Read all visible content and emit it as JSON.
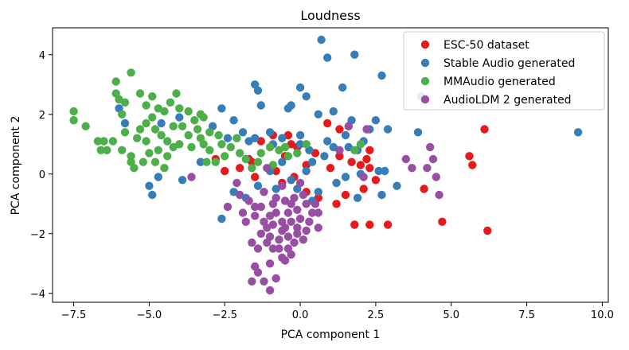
{
  "chart_data": {
    "type": "scatter",
    "title": "Loudness",
    "xlabel": "PCA component 1",
    "ylabel": "PCA component 2",
    "xlim": [
      -8.2,
      10.2
    ],
    "ylim": [
      -4.3,
      4.9
    ],
    "xticks": [
      -7.5,
      -5.0,
      -2.5,
      0.0,
      2.5,
      5.0,
      7.5,
      10.0
    ],
    "xtick_labels": [
      "−7.5",
      "−5.0",
      "−2.5",
      "0.0",
      "2.5",
      "5.0",
      "7.5",
      "10.0"
    ],
    "yticks": [
      -4,
      -2,
      0,
      2,
      4
    ],
    "ytick_labels": [
      "−4",
      "−2",
      "0",
      "2",
      "4"
    ],
    "grid": false,
    "legend_position": "top-right",
    "series": [
      {
        "name": "ESC-50 dataset",
        "color": "#e41a1c",
        "points": [
          [
            -1.3,
            1.1
          ],
          [
            -0.9,
            1.3
          ],
          [
            -0.4,
            1.3
          ],
          [
            -0.3,
            1.0
          ],
          [
            -0.1,
            0.9
          ],
          [
            0.9,
            1.7
          ],
          [
            1.3,
            1.5
          ],
          [
            1.6,
            1.6
          ],
          [
            2.2,
            0.5
          ],
          [
            2.3,
            0.8
          ],
          [
            2.0,
            0.3
          ],
          [
            1.3,
            0.6
          ],
          [
            0.5,
            0.7
          ],
          [
            -1.7,
            0.5
          ],
          [
            -2.0,
            0.2
          ],
          [
            -2.5,
            0.1
          ],
          [
            -1.5,
            -0.1
          ],
          [
            -0.8,
            0.1
          ],
          [
            -0.6,
            -0.3
          ],
          [
            -0.2,
            -0.1
          ],
          [
            0.2,
            0.3
          ],
          [
            1.0,
            0.2
          ],
          [
            1.7,
            0.4
          ],
          [
            2.3,
            0.2
          ],
          [
            2.5,
            -0.2
          ],
          [
            2.1,
            -0.5
          ],
          [
            1.5,
            -0.7
          ],
          [
            0.6,
            -0.8
          ],
          [
            1.2,
            -1.0
          ],
          [
            1.8,
            -1.7
          ],
          [
            2.3,
            -1.7
          ],
          [
            2.9,
            -1.7
          ],
          [
            4.1,
            -0.5
          ],
          [
            4.7,
            -1.6
          ],
          [
            5.6,
            0.6
          ],
          [
            5.7,
            0.3
          ],
          [
            6.1,
            1.5
          ],
          [
            6.2,
            -1.9
          ],
          [
            -2.8,
            0.5
          ],
          [
            -1.6,
            0.4
          ],
          [
            -0.5,
            0.6
          ],
          [
            0.2,
            -0.6
          ]
        ]
      },
      {
        "name": "Stable Audio generated",
        "color": "#377eb8",
        "points": [
          [
            0.7,
            4.5
          ],
          [
            0.9,
            3.9
          ],
          [
            1.8,
            4.0
          ],
          [
            2.7,
            3.3
          ],
          [
            1.4,
            2.9
          ],
          [
            -1.4,
            2.8
          ],
          [
            -1.5,
            3.0
          ],
          [
            -1.3,
            2.3
          ],
          [
            -0.4,
            2.2
          ],
          [
            0.0,
            2.9
          ],
          [
            0.2,
            2.6
          ],
          [
            -0.3,
            2.3
          ],
          [
            0.6,
            2.0
          ],
          [
            1.1,
            2.1
          ],
          [
            1.7,
            1.8
          ],
          [
            2.3,
            1.5
          ],
          [
            2.5,
            1.8
          ],
          [
            2.9,
            1.5
          ],
          [
            3.9,
            1.4
          ],
          [
            4.0,
            2.6
          ],
          [
            9.2,
            1.4
          ],
          [
            -2.6,
            2.2
          ],
          [
            -2.2,
            1.8
          ],
          [
            -1.9,
            1.4
          ],
          [
            -1.5,
            1.2
          ],
          [
            -1.0,
            1.4
          ],
          [
            -0.6,
            1.2
          ],
          [
            0.0,
            1.0
          ],
          [
            0.3,
            0.8
          ],
          [
            0.8,
            0.6
          ],
          [
            1.1,
            0.9
          ],
          [
            1.6,
            0.9
          ],
          [
            1.9,
            0.8
          ],
          [
            2.6,
            0.1
          ],
          [
            2.8,
            0.1
          ],
          [
            3.2,
            -0.4
          ],
          [
            2.7,
            -0.7
          ],
          [
            1.9,
            -0.8
          ],
          [
            1.2,
            -0.3
          ],
          [
            0.6,
            -0.6
          ],
          [
            0.2,
            0.1
          ],
          [
            -0.3,
            -0.2
          ],
          [
            -0.6,
            0.4
          ],
          [
            -1.0,
            0.1
          ],
          [
            -1.4,
            -0.4
          ],
          [
            -1.8,
            -0.8
          ],
          [
            -2.2,
            -0.6
          ],
          [
            -2.6,
            -1.5
          ],
          [
            -3.3,
            0.4
          ],
          [
            -3.9,
            -0.2
          ],
          [
            -4.7,
            -0.1
          ],
          [
            -5.0,
            -0.4
          ],
          [
            -4.9,
            -0.7
          ],
          [
            -5.8,
            1.7
          ],
          [
            -6.0,
            2.2
          ],
          [
            -4.6,
            1.7
          ],
          [
            -4.0,
            1.9
          ],
          [
            -2.9,
            1.6
          ],
          [
            -2.4,
            1.2
          ],
          [
            -1.7,
            1.1
          ],
          [
            -0.9,
            1.0
          ],
          [
            1.5,
            -0.1
          ],
          [
            2.0,
            0.0
          ],
          [
            0.4,
            0.4
          ],
          [
            -0.1,
            -0.5
          ],
          [
            0.0,
            1.3
          ],
          [
            0.9,
            1.1
          ],
          [
            1.5,
            1.3
          ],
          [
            2.1,
            1.1
          ],
          [
            0.4,
            -0.9
          ],
          [
            -0.8,
            -0.5
          ]
        ]
      },
      {
        "name": "MMAudio generated",
        "color": "#4daf4a",
        "points": [
          [
            -7.5,
            2.1
          ],
          [
            -7.5,
            1.8
          ],
          [
            -7.1,
            1.6
          ],
          [
            -6.7,
            1.1
          ],
          [
            -6.5,
            1.1
          ],
          [
            -6.6,
            0.8
          ],
          [
            -6.2,
            1.1
          ],
          [
            -5.9,
            0.8
          ],
          [
            -5.6,
            0.6
          ],
          [
            -5.4,
            1.2
          ],
          [
            -5.3,
            1.5
          ],
          [
            -5.1,
            1.7
          ],
          [
            -4.9,
            1.9
          ],
          [
            -4.8,
            1.5
          ],
          [
            -4.6,
            1.3
          ],
          [
            -4.4,
            1.1
          ],
          [
            -4.2,
            0.9
          ],
          [
            -4.4,
            0.6
          ],
          [
            -4.7,
            0.8
          ],
          [
            -5.0,
            0.7
          ],
          [
            -5.2,
            0.4
          ],
          [
            -5.5,
            0.2
          ],
          [
            -5.6,
            0.4
          ],
          [
            -5.9,
            2.0
          ],
          [
            -6.0,
            2.5
          ],
          [
            -6.1,
            2.7
          ],
          [
            -5.8,
            2.4
          ],
          [
            -6.1,
            3.1
          ],
          [
            -5.6,
            3.4
          ],
          [
            -5.3,
            2.7
          ],
          [
            -5.1,
            2.3
          ],
          [
            -4.9,
            2.6
          ],
          [
            -4.7,
            2.2
          ],
          [
            -4.5,
            2.1
          ],
          [
            -4.3,
            2.4
          ],
          [
            -4.1,
            2.7
          ],
          [
            -4.0,
            2.2
          ],
          [
            -3.9,
            1.6
          ],
          [
            -3.7,
            1.3
          ],
          [
            -3.4,
            1.5
          ],
          [
            -3.2,
            1.9
          ],
          [
            -3.0,
            1.4
          ],
          [
            -3.2,
            1.0
          ],
          [
            -3.0,
            0.8
          ],
          [
            -2.8,
            0.4
          ],
          [
            -2.5,
            0.6
          ],
          [
            -2.3,
            0.9
          ],
          [
            -2.1,
            1.2
          ],
          [
            -2.0,
            0.7
          ],
          [
            -1.8,
            0.5
          ],
          [
            -1.6,
            0.2
          ],
          [
            -1.3,
            0.7
          ],
          [
            -1.0,
            0.9
          ],
          [
            -0.7,
            0.8
          ],
          [
            -0.4,
            0.6
          ],
          [
            -0.1,
            0.7
          ],
          [
            0.2,
            1.0
          ],
          [
            -4.0,
            1.0
          ],
          [
            -3.6,
            0.9
          ],
          [
            -3.3,
            2.0
          ],
          [
            -3.1,
            0.4
          ],
          [
            -5.8,
            1.4
          ],
          [
            -6.4,
            0.8
          ],
          [
            -4.8,
            0.4
          ],
          [
            -3.5,
            1.8
          ],
          [
            -2.7,
            1.3
          ],
          [
            -4.2,
            1.6
          ],
          [
            -5.1,
            1.1
          ],
          [
            -3.7,
            2.1
          ],
          [
            -2.6,
            1.0
          ],
          [
            -1.4,
            0.4
          ],
          [
            -0.9,
            0.3
          ],
          [
            -0.5,
            0.9
          ],
          [
            -4.5,
            0.2
          ],
          [
            -3.3,
            1.2
          ],
          [
            1.8,
            0.8
          ],
          [
            2.0,
            1.0
          ]
        ]
      },
      {
        "name": "AudioLDM 2 generated",
        "color": "#984ea3",
        "points": [
          [
            -1.0,
            -3.9
          ],
          [
            -1.2,
            -3.6
          ],
          [
            -1.6,
            -3.6
          ],
          [
            -1.4,
            -3.3
          ],
          [
            -0.8,
            -3.5
          ],
          [
            -1.5,
            -3.1
          ],
          [
            -1.0,
            -3.0
          ],
          [
            -0.6,
            -2.8
          ],
          [
            -0.3,
            -2.7
          ],
          [
            -1.6,
            -2.3
          ],
          [
            -1.1,
            -2.3
          ],
          [
            -0.7,
            -2.2
          ],
          [
            -0.4,
            -2.1
          ],
          [
            -0.1,
            -2.0
          ],
          [
            0.2,
            -1.9
          ],
          [
            0.6,
            -1.8
          ],
          [
            -0.5,
            -1.8
          ],
          [
            -0.9,
            -1.7
          ],
          [
            -1.2,
            -1.6
          ],
          [
            -1.5,
            -1.4
          ],
          [
            -1.9,
            -1.3
          ],
          [
            -2.4,
            -1.1
          ],
          [
            -1.3,
            -1.1
          ],
          [
            -0.9,
            -1.0
          ],
          [
            -0.5,
            -0.9
          ],
          [
            -0.2,
            -0.8
          ],
          [
            0.1,
            -0.7
          ],
          [
            -0.4,
            -1.3
          ],
          [
            0.0,
            -1.5
          ],
          [
            -0.6,
            -1.6
          ],
          [
            -1.0,
            -1.4
          ],
          [
            -1.5,
            -1.1
          ],
          [
            -1.8,
            -1.6
          ],
          [
            -0.7,
            -2.5
          ],
          [
            -0.2,
            -2.3
          ],
          [
            0.1,
            -2.2
          ],
          [
            -1.3,
            -2.0
          ],
          [
            -1.0,
            -2.1
          ],
          [
            -0.6,
            -1.9
          ],
          [
            -0.3,
            -1.6
          ],
          [
            0.3,
            -1.6
          ],
          [
            0.4,
            -1.3
          ],
          [
            -0.1,
            -1.2
          ],
          [
            -0.8,
            -1.3
          ],
          [
            -1.7,
            -0.9
          ],
          [
            -2.0,
            -0.7
          ],
          [
            -1.2,
            -0.6
          ],
          [
            -0.6,
            -0.4
          ],
          [
            0.0,
            -0.3
          ],
          [
            0.5,
            -1.0
          ],
          [
            0.6,
            -1.3
          ],
          [
            -0.3,
            -1.0
          ],
          [
            -0.9,
            -2.5
          ],
          [
            -1.4,
            -2.5
          ],
          [
            -3.6,
            -0.1
          ],
          [
            -2.1,
            -0.3
          ],
          [
            -1.1,
            0.2
          ],
          [
            1.3,
            0.8
          ],
          [
            1.6,
            1.6
          ],
          [
            2.2,
            1.5
          ],
          [
            2.1,
            -0.1
          ],
          [
            3.5,
            0.5
          ],
          [
            3.7,
            0.2
          ],
          [
            4.3,
            0.9
          ],
          [
            4.4,
            0.5
          ],
          [
            4.5,
            -0.1
          ],
          [
            4.6,
            -0.7
          ],
          [
            4.2,
            0.2
          ],
          [
            -0.5,
            -2.9
          ],
          [
            0.2,
            -1.0
          ],
          [
            -0.8,
            -0.8
          ],
          [
            -0.1,
            -1.8
          ],
          [
            -0.4,
            -2.5
          ],
          [
            -1.1,
            -1.8
          ]
        ]
      }
    ]
  }
}
